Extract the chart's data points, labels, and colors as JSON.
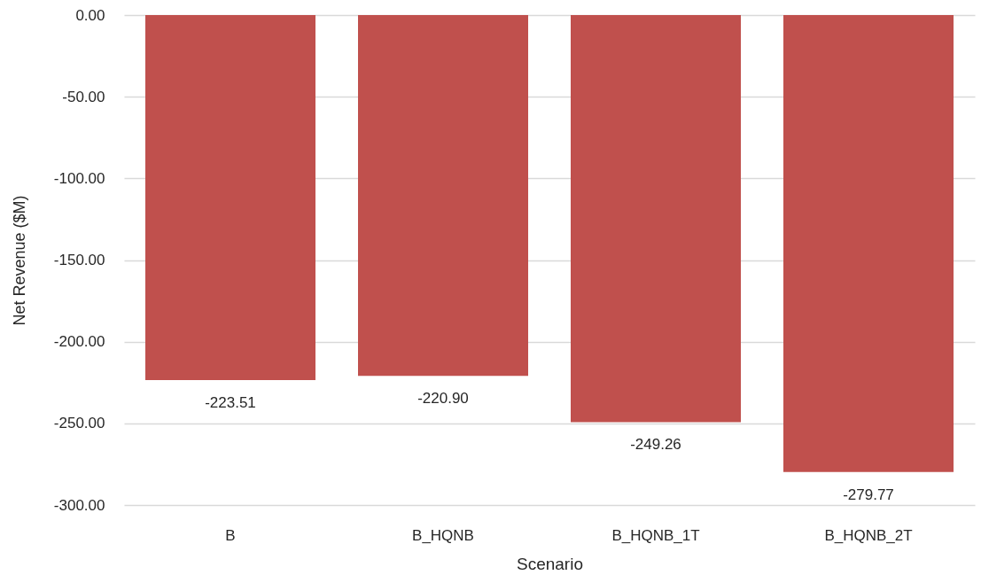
{
  "chart_data": {
    "type": "bar",
    "xlabel": "Scenario",
    "ylabel": "Net Revenue ($M)",
    "categories": [
      "B",
      "B_HQNB",
      "B_HQNB_1T",
      "B_HQNB_2T"
    ],
    "values": [
      -223.51,
      -220.9,
      -249.26,
      -279.77
    ],
    "value_labels": [
      "-223.51",
      "-220.90",
      "-249.26",
      "-279.77"
    ],
    "color": "#c0504d",
    "ylim": [
      -300,
      0
    ],
    "yticks": [
      {
        "value": 0,
        "label": "0.00"
      },
      {
        "value": -50,
        "label": "-50.00"
      },
      {
        "value": -100,
        "label": "-100.00"
      },
      {
        "value": -150,
        "label": "-150.00"
      },
      {
        "value": -200,
        "label": "-200.00"
      },
      {
        "value": -250,
        "label": "-250.00"
      },
      {
        "value": -300,
        "label": "-300.00"
      }
    ],
    "grid": "y"
  }
}
